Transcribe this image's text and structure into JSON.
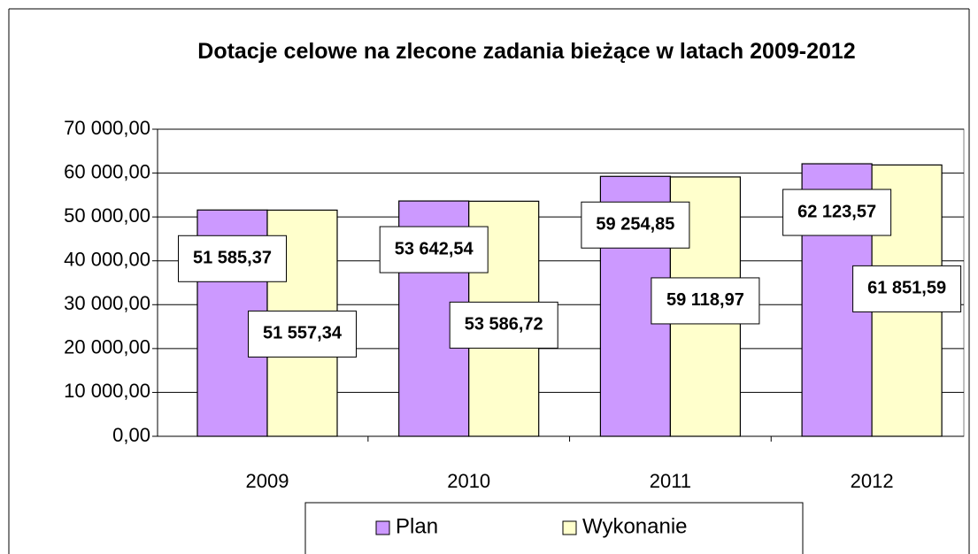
{
  "chart_data": {
    "type": "bar",
    "title": "Dotacje celowe na zlecone zadania bieżące w latach 2009-2012",
    "categories": [
      "2009",
      "2010",
      "2011",
      "2012"
    ],
    "series": [
      {
        "name": "Plan",
        "color": "#cc99ff",
        "values": [
          51585.37,
          53642.54,
          59254.85,
          62123.57
        ],
        "value_labels": [
          "51 585,37",
          "53 642,54",
          "59 254,85",
          "62 123,57"
        ]
      },
      {
        "name": "Wykonanie",
        "color": "#ffffcc",
        "values": [
          51557.34,
          53586.72,
          59118.97,
          61851.59
        ],
        "value_labels": [
          "51 557,34",
          "53 586,72",
          "59 118,97",
          "61 851,59"
        ]
      }
    ],
    "ylim": [
      0,
      70000
    ],
    "yticks": [
      {
        "value": 0,
        "label": "0,00"
      },
      {
        "value": 10000,
        "label": "10 000,00"
      },
      {
        "value": 20000,
        "label": "20 000,00"
      },
      {
        "value": 30000,
        "label": "30 000,00"
      },
      {
        "value": 40000,
        "label": "40 000,00"
      },
      {
        "value": 50000,
        "label": "50 000,00"
      },
      {
        "value": 60000,
        "label": "60 000,00"
      },
      {
        "value": 70000,
        "label": "70 000,00"
      }
    ],
    "grid": true,
    "legend": "bottom"
  }
}
